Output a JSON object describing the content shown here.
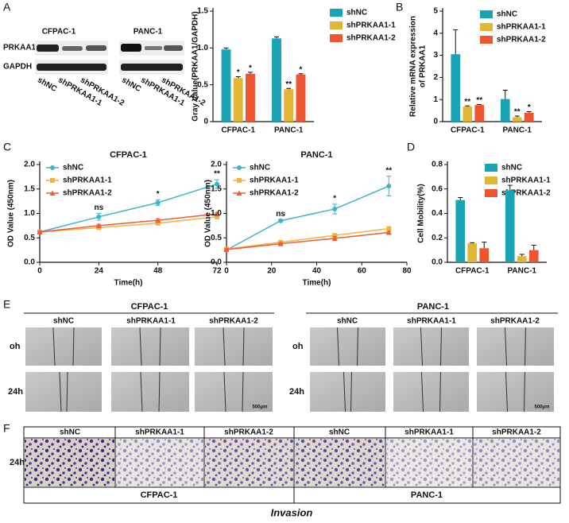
{
  "panel_labels": [
    "A",
    "B",
    "C",
    "D",
    "E",
    "F"
  ],
  "western_blot": {
    "rows": [
      "PRKAA1",
      "GAPDH"
    ],
    "groups": [
      "CFPAC-1",
      "PANC-1"
    ],
    "lanes": [
      "shNC",
      "shPRKAA1-1",
      "shPRKAA1-2"
    ]
  },
  "migration": {
    "groups": [
      "CFPAC-1",
      "PANC-1"
    ],
    "columns": [
      "shNC",
      "shPRKAA1-1",
      "shPRKAA1-2"
    ],
    "rows": [
      "oh",
      "24h"
    ],
    "scale_bar": "500μm"
  },
  "invasion": {
    "row": "24h",
    "columns": [
      "shNC",
      "shPRKAA1-1",
      "shPRKAA1-2"
    ],
    "groups": [
      "CFPAC-1",
      "PANC-1"
    ],
    "caption": "Invasion"
  },
  "chart_data": [
    {
      "type": "bar",
      "ylabel": [
        "Gray Value(PRKAA1/GAPDH)"
      ],
      "categories": [
        "CFPAC-1",
        "PANC-1"
      ],
      "series": [
        {
          "name": "shNC",
          "color": "#1aa3b5",
          "values": [
            0.98,
            1.13
          ],
          "errors": [
            0.02,
            0.02
          ]
        },
        {
          "name": "shPRKAA1-1",
          "color": "#e3b534",
          "values": [
            0.59,
            0.44
          ],
          "errors": [
            0.02,
            0.01
          ],
          "significance": [
            "*",
            "**"
          ]
        },
        {
          "name": "shPRKAA1-2",
          "color": "#ef5430",
          "values": [
            0.65,
            0.64
          ],
          "errors": [
            0.02,
            0.01
          ],
          "significance": [
            "*",
            "*"
          ]
        }
      ],
      "ylim": [
        0,
        1.5
      ],
      "yticks": [
        0,
        0.5,
        {
          "value": 1,
          "label": "1.0"
        },
        1.5
      ],
      "legend": "outside right"
    },
    {
      "type": "bar",
      "ylabel": [
        "Relative mRNA expression",
        "of PRKAA1"
      ],
      "categories": [
        "CFPAC-1",
        "PANC-1"
      ],
      "series": [
        {
          "name": "shNC",
          "color": "#1aa3b5",
          "values": [
            3.05,
            1.02
          ],
          "errors": [
            1.1,
            0.4
          ]
        },
        {
          "name": "shPRKAA1-1",
          "color": "#e3b534",
          "values": [
            0.68,
            0.2
          ],
          "errors": [
            0.03,
            0.05
          ],
          "significance": [
            "**",
            "**"
          ]
        },
        {
          "name": "shPRKAA1-2",
          "color": "#ef5430",
          "values": [
            0.75,
            0.4
          ],
          "errors": [
            0.03,
            0.05
          ],
          "significance": [
            "**",
            "*"
          ]
        }
      ],
      "ylim": [
        0,
        5
      ],
      "yticks": [
        0,
        1,
        2,
        3,
        4,
        5
      ],
      "legend": "upper right"
    },
    {
      "type": "line",
      "title": "CFPAC-1",
      "xlabel": "Time(h)",
      "ylabel": [
        "OD Value (450nm)"
      ],
      "x": [
        0,
        24,
        48,
        72
      ],
      "series": [
        {
          "name": "shNC",
          "color": "#3cb5c8",
          "marker": "circle",
          "values": [
            0.62,
            0.93,
            1.22,
            1.6
          ],
          "errors": [
            0.03,
            0.07,
            0.06,
            0.09
          ],
          "significance": [
            null,
            "ns",
            "*",
            "**"
          ]
        },
        {
          "name": "shPRKAA1-1",
          "color": "#f2b43c",
          "marker": "square",
          "values": [
            0.62,
            0.71,
            0.8,
            0.93
          ],
          "errors": [
            0.02,
            0.04,
            0.03,
            0.03
          ]
        },
        {
          "name": "shPRKAA1-2",
          "color": "#ee5b3d",
          "marker": "triangle",
          "values": [
            0.62,
            0.75,
            0.86,
            0.99
          ],
          "errors": [
            0.02,
            0.03,
            0.03,
            0.03
          ]
        }
      ],
      "xlim": [
        0,
        72
      ],
      "xticks": [
        0,
        24,
        48,
        72
      ],
      "ylim": [
        0,
        2
      ],
      "yticks": [
        {
          "value": 0,
          "label": "0.0"
        },
        0.5,
        {
          "value": 1,
          "label": "1.0"
        },
        1.5,
        {
          "value": 2,
          "label": "2.0"
        }
      ],
      "legend": "upper left"
    },
    {
      "type": "line",
      "title": "PANC-1",
      "xlabel": "Time(h)",
      "ylabel": [
        "OD Value (450nm)"
      ],
      "x": [
        0,
        24,
        48,
        72
      ],
      "series": [
        {
          "name": "shNC",
          "color": "#3cb5c8",
          "marker": "circle",
          "values": [
            0.25,
            0.85,
            1.09,
            1.56
          ],
          "errors": [
            0.02,
            0.02,
            0.1,
            0.2
          ],
          "significance": [
            null,
            "ns",
            "*",
            "**"
          ]
        },
        {
          "name": "shPRKAA1-1",
          "color": "#f2b43c",
          "marker": "square",
          "values": [
            0.27,
            0.41,
            0.55,
            0.69
          ],
          "errors": [
            0.02,
            0.02,
            0.03,
            0.02
          ]
        },
        {
          "name": "shPRKAA1-2",
          "color": "#ee5b3d",
          "marker": "triangle",
          "values": [
            0.26,
            0.38,
            0.49,
            0.61
          ],
          "errors": [
            0.02,
            0.02,
            0.04,
            0.02
          ]
        }
      ],
      "xlim": [
        0,
        80
      ],
      "xticks": [
        0,
        20,
        40,
        60,
        80
      ],
      "ylim": [
        0,
        2
      ],
      "yticks": [
        {
          "value": 0,
          "label": "0.0"
        },
        0.5,
        {
          "value": 1,
          "label": "1.0"
        },
        1.5,
        {
          "value": 2,
          "label": "2.0"
        }
      ],
      "legend": "upper left"
    },
    {
      "type": "bar",
      "ylabel": [
        "Cell Mobility(%)"
      ],
      "categories": [
        "CFPAC-1",
        "PANC-1"
      ],
      "series": [
        {
          "name": "shNC",
          "color": "#1aa3b5",
          "values": [
            0.51,
            0.59
          ],
          "errors": [
            0.02,
            0.04
          ]
        },
        {
          "name": "shPRKAA1-1",
          "color": "#e3b534",
          "values": [
            0.155,
            0.05
          ],
          "errors": [
            0.005,
            0.015
          ]
        },
        {
          "name": "shPRKAA1-2",
          "color": "#ef5430",
          "values": [
            0.115,
            0.1
          ],
          "errors": [
            0.05,
            0.04
          ]
        }
      ],
      "ylim": [
        0,
        0.8
      ],
      "yticks": [
        {
          "value": 0,
          "label": "0.0"
        },
        0.2,
        0.4,
        0.6,
        0.8
      ],
      "legend": "upper right"
    }
  ]
}
